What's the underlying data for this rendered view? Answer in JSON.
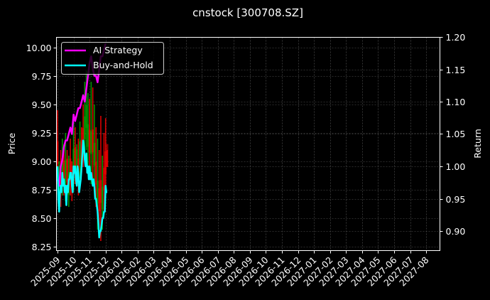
{
  "title": "cnstock [300708.SZ]",
  "chart_data": {
    "type": "line",
    "title": "cnstock [300708.SZ]",
    "xlabel": "",
    "ylabel": "Price",
    "ylabel_right": "Return",
    "ylim": [
      8.22,
      10.09
    ],
    "ylim_right": [
      0.875,
      1.2
    ],
    "grid": true,
    "legend_position": "upper left",
    "x_tick_labels": [
      "2025-09",
      "2025-10",
      "2025-11",
      "2025-12",
      "2026-01",
      "2026-02",
      "2026-03",
      "2026-04",
      "2026-05",
      "2026-06",
      "2026-07",
      "2026-08",
      "2026-09",
      "2026-10",
      "2026-11",
      "2026-12",
      "2027-01",
      "2027-02",
      "2027-03",
      "2027-04",
      "2027-05",
      "2027-06",
      "2027-07",
      "2027-08"
    ],
    "y_tick_labels": [
      "8.25",
      "8.50",
      "8.75",
      "9.00",
      "9.25",
      "9.50",
      "9.75",
      "10.00"
    ],
    "y_tick_values": [
      8.25,
      8.5,
      8.75,
      9.0,
      9.25,
      9.5,
      9.75,
      10.0
    ],
    "y_right_tick_labels": [
      "0.90",
      "0.95",
      "1.00",
      "1.05",
      "1.10",
      "1.15",
      "1.20"
    ],
    "y_right_tick_values": [
      0.9,
      0.95,
      1.0,
      1.05,
      1.1,
      1.15,
      1.2
    ],
    "x_range_months": [
      -0.1,
      23.9
    ],
    "colors": {
      "ai_strategy": "#ff00ff",
      "buy_and_hold": "#00ffff",
      "up_candle": "#00aa00",
      "down_candle": "#ff0000",
      "grid": "#555555",
      "axes": "#ffffff",
      "background": "#000000"
    },
    "series": [
      {
        "name": "AI Strategy",
        "axis": "right",
        "x_months": [
          0.0,
          0.1,
          0.2,
          0.3,
          0.4,
          0.5,
          0.6,
          0.7,
          0.8,
          0.9,
          1.0,
          1.1,
          1.2,
          1.3,
          1.4,
          1.5,
          1.6,
          1.7,
          1.8,
          1.9,
          2.0,
          2.1,
          2.2,
          2.3,
          2.4,
          2.5,
          2.6,
          2.7,
          2.8,
          2.9,
          3.0
        ],
        "values": [
          0.98,
          0.97,
          1.0,
          1.01,
          1.03,
          1.04,
          1.04,
          1.05,
          1.06,
          1.05,
          1.08,
          1.07,
          1.08,
          1.09,
          1.09,
          1.1,
          1.11,
          1.1,
          1.12,
          1.14,
          1.16,
          1.17,
          1.15,
          1.14,
          1.14,
          1.13,
          1.15,
          1.17,
          1.17,
          1.18,
          1.19
        ]
      },
      {
        "name": "Buy-and-Hold",
        "axis": "right",
        "x_months": [
          0.0,
          0.05,
          0.1,
          0.15,
          0.2,
          0.25,
          0.3,
          0.35,
          0.4,
          0.45,
          0.5,
          0.55,
          0.6,
          0.65,
          0.7,
          0.75,
          0.8,
          0.85,
          0.9,
          0.95,
          1.0,
          1.05,
          1.1,
          1.15,
          1.2,
          1.25,
          1.3,
          1.35,
          1.4,
          1.45,
          1.5,
          1.55,
          1.6,
          1.65,
          1.7,
          1.75,
          1.8,
          1.85,
          1.9,
          1.95,
          2.0,
          2.05,
          2.1,
          2.15,
          2.2,
          2.25,
          2.3,
          2.35,
          2.4,
          2.45,
          2.5,
          2.55,
          2.6,
          2.65,
          2.7,
          2.75,
          2.8,
          2.85,
          2.9,
          2.95,
          3.0,
          3.05,
          3.1
        ],
        "values": [
          1.0,
          0.95,
          0.93,
          0.96,
          0.97,
          0.96,
          0.99,
          0.97,
          0.98,
          0.96,
          0.97,
          0.94,
          0.97,
          0.96,
          0.98,
          0.98,
          0.99,
          0.99,
          0.97,
          0.96,
          1.0,
          0.99,
          1.0,
          0.98,
          0.97,
          1.0,
          0.99,
          0.96,
          0.97,
          0.98,
          1.0,
          1.02,
          1.04,
          1.03,
          1.01,
          1.0,
          1.02,
          0.99,
          1.0,
          0.98,
          1.0,
          0.98,
          0.99,
          0.98,
          0.97,
          0.98,
          0.97,
          0.95,
          0.95,
          0.94,
          0.93,
          0.91,
          0.89,
          0.9,
          0.9,
          0.91,
          0.92,
          0.92,
          0.93,
          0.93,
          0.97,
          0.96,
          0.96
        ]
      }
    ],
    "price_candles_wicks": {
      "x_months": [
        0.0,
        0.1,
        0.2,
        0.3,
        0.4,
        0.5,
        0.6,
        0.7,
        0.8,
        0.9,
        1.0,
        1.1,
        1.2,
        1.3,
        1.4,
        1.5,
        1.6,
        1.7,
        1.8,
        1.9,
        2.0,
        2.1,
        2.2,
        2.3,
        2.4,
        2.5,
        2.6,
        2.7,
        2.8,
        2.9,
        3.0,
        3.1
      ],
      "high": [
        9.45,
        9.0,
        9.1,
        9.2,
        9.15,
        9.25,
        9.1,
        9.05,
        9.2,
        9.0,
        9.35,
        9.3,
        9.15,
        9.2,
        9.35,
        9.3,
        9.5,
        9.7,
        9.8,
        9.6,
        9.55,
        9.7,
        9.65,
        9.5,
        9.3,
        9.2,
        9.1,
        9.4,
        9.05,
        9.25,
        9.38,
        9.1
      ],
      "low": [
        8.8,
        8.55,
        8.6,
        8.7,
        8.7,
        8.65,
        8.75,
        8.6,
        8.7,
        8.65,
        8.75,
        8.8,
        8.85,
        8.7,
        8.85,
        8.9,
        8.95,
        9.0,
        9.1,
        8.95,
        8.9,
        8.8,
        8.85,
        8.75,
        8.6,
        8.4,
        8.35,
        8.3,
        8.4,
        8.55,
        8.7,
        8.95
      ],
      "up": [
        false,
        true,
        false,
        true,
        false,
        true,
        false,
        true,
        false,
        false,
        true,
        false,
        true,
        false,
        true,
        false,
        false,
        true,
        true,
        true,
        false,
        true,
        false,
        true,
        false,
        true,
        false,
        false,
        true,
        false,
        false,
        false
      ]
    }
  },
  "legend": {
    "items": [
      {
        "label": "AI Strategy",
        "color": "#ff00ff"
      },
      {
        "label": "Buy-and-Hold",
        "color": "#00ffff"
      }
    ]
  },
  "axes": {
    "left_label": "Price",
    "right_label": "Return"
  }
}
